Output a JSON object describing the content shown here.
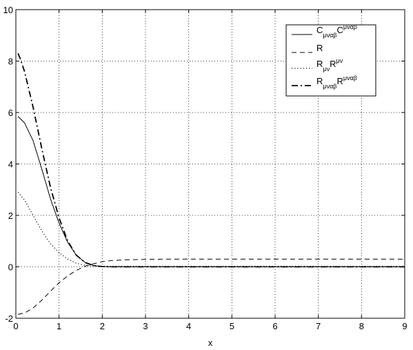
{
  "chart_data": {
    "type": "line",
    "title": "",
    "xlabel": "x",
    "ylabel": "",
    "xlim": [
      0,
      9
    ],
    "ylim": [
      -2,
      10
    ],
    "xticks": [
      "0",
      "1",
      "2",
      "3",
      "4",
      "5",
      "6",
      "7",
      "8",
      "9"
    ],
    "yticks": [
      "-2",
      "0",
      "2",
      "4",
      "6",
      "8",
      "10"
    ],
    "grid": true,
    "legend_position": "top-right",
    "series": [
      {
        "name": "C_{μναβ}C^{μναβ}",
        "style": "solid",
        "color": "#000000",
        "x": [
          0.05,
          0.2,
          0.4,
          0.6,
          0.8,
          1.0,
          1.2,
          1.4,
          1.6,
          1.8,
          2.0,
          2.2,
          2.5,
          3.0,
          4.0,
          5.0,
          6.0,
          7.0,
          8.0,
          9.0
        ],
        "y": [
          5.85,
          5.6,
          4.9,
          3.8,
          2.65,
          1.7,
          0.95,
          0.45,
          0.17,
          0.05,
          0.01,
          0.0,
          0.0,
          0.0,
          0.0,
          0.0,
          0.0,
          0.0,
          0.0,
          0.0
        ]
      },
      {
        "name": "R",
        "style": "dashed",
        "color": "#000000",
        "x": [
          0.05,
          0.2,
          0.4,
          0.6,
          0.8,
          1.0,
          1.2,
          1.4,
          1.6,
          1.8,
          2.0,
          2.2,
          2.5,
          3.0,
          3.5,
          4.0,
          5.0,
          6.0,
          7.0,
          8.0,
          9.0
        ],
        "y": [
          -1.85,
          -1.8,
          -1.6,
          -1.3,
          -0.95,
          -0.62,
          -0.35,
          -0.14,
          0.02,
          0.12,
          0.2,
          0.24,
          0.27,
          0.29,
          0.3,
          0.3,
          0.3,
          0.3,
          0.3,
          0.3,
          0.3
        ]
      },
      {
        "name": "R_{μν}R^{μν}",
        "style": "dotted",
        "color": "#000000",
        "x": [
          0.05,
          0.2,
          0.4,
          0.6,
          0.8,
          1.0,
          1.2,
          1.4,
          1.6,
          1.8,
          2.0,
          2.2,
          2.5,
          3.0,
          4.0,
          5.0,
          6.0,
          7.0,
          8.0,
          9.0
        ],
        "y": [
          2.9,
          2.6,
          2.0,
          1.4,
          0.9,
          0.55,
          0.3,
          0.14,
          0.06,
          0.03,
          0.02,
          0.02,
          0.02,
          0.02,
          0.02,
          0.02,
          0.02,
          0.02,
          0.02,
          0.02
        ]
      },
      {
        "name": "R_{μναβ}R^{μναβ}",
        "style": "dashdot",
        "color": "#000000",
        "x": [
          0.05,
          0.1,
          0.2,
          0.4,
          0.6,
          0.8,
          1.0,
          1.2,
          1.4,
          1.6,
          1.8,
          2.0,
          2.2,
          2.5,
          3.0,
          4.0,
          5.0,
          6.0,
          7.0,
          8.0,
          9.0
        ],
        "y": [
          8.3,
          8.1,
          7.6,
          6.2,
          4.6,
          3.1,
          1.9,
          1.0,
          0.45,
          0.17,
          0.05,
          0.01,
          0.0,
          0.0,
          0.0,
          0.0,
          0.0,
          0.0,
          0.0,
          0.0,
          0.0
        ]
      }
    ],
    "legend": [
      {
        "base": "C",
        "sub1": "μναβ",
        "base2": "C",
        "sup2": "μναβ"
      },
      {
        "base": "R",
        "sub1": "",
        "base2": "",
        "sup2": ""
      },
      {
        "base": "R",
        "sub1": "μν",
        "base2": "R",
        "sup2": "μν"
      },
      {
        "base": "R",
        "sub1": "μναβ",
        "base2": "R",
        "sup2": "μναβ"
      }
    ]
  }
}
